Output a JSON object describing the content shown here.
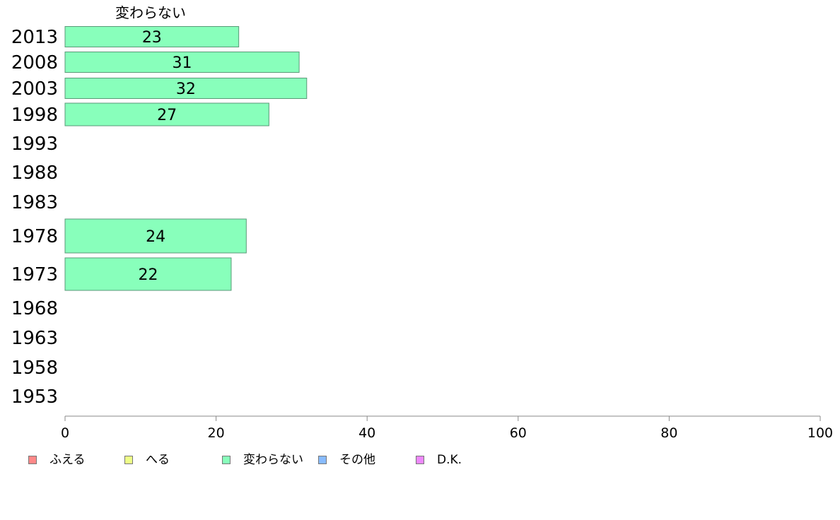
{
  "chart_data": {
    "type": "bar",
    "orientation": "horizontal",
    "series_title": "変わらない",
    "categories": [
      "2013",
      "2008",
      "2003",
      "1998",
      "1993",
      "1988",
      "1983",
      "1978",
      "1973",
      "1968",
      "1963",
      "1958",
      "1953"
    ],
    "series": [
      {
        "name": "変わらない",
        "color": "#88ffbb",
        "values": [
          23,
          31,
          32,
          27,
          null,
          null,
          null,
          24,
          22,
          null,
          null,
          null,
          null
        ]
      }
    ],
    "xlim": [
      0,
      100
    ],
    "xticks": [
      0,
      20,
      40,
      60,
      80,
      100
    ],
    "legend": {
      "placement": "bottom-left",
      "items": [
        {
          "label": "ふえる",
          "color": "#ff8888"
        },
        {
          "label": "へる",
          "color": "#eeff88"
        },
        {
          "label": "変わらない",
          "color": "#88ffbb"
        },
        {
          "label": "その他",
          "color": "#88bbff"
        },
        {
          "label": "D.K.",
          "color": "#ee88ff"
        }
      ]
    },
    "grid": false
  }
}
